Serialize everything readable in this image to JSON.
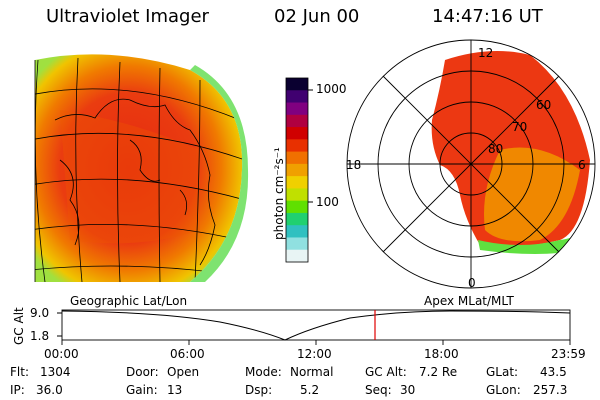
{
  "header": {
    "instrument": "Ultraviolet Imager",
    "date": "02 Jun 00",
    "time": "14:47:16 UT"
  },
  "colorbar": {
    "unit_label": "photon cm⁻²s⁻¹",
    "ticks": [
      "1000",
      "100"
    ],
    "colors": [
      "#0a0030",
      "#400070",
      "#800080",
      "#b00040",
      "#d00000",
      "#e83000",
      "#f07000",
      "#f0a000",
      "#f0d000",
      "#c0e000",
      "#60e000",
      "#20d070",
      "#30c0c0",
      "#90e0e0",
      "#e8f4f4"
    ]
  },
  "polar": {
    "clock_labels": [
      "12",
      "18",
      "6",
      "0"
    ],
    "lat_labels": [
      "60",
      "70",
      "80"
    ]
  },
  "panel_labels": {
    "left": "Geographic Lat/Lon",
    "right": "Apex MLat/MLT"
  },
  "altitude_plot": {
    "axis_label": "GC Alt",
    "y_ticks": [
      "9.0",
      "1.8"
    ],
    "x_ticks": [
      "00:00",
      "06:00",
      "12:00",
      "18:00",
      "23:59"
    ],
    "current_time_marker": "14:47"
  },
  "info": {
    "flt_label": "Flt:",
    "flt_value": "1304",
    "ip_label": "IP:",
    "ip_value": "36.0",
    "door_label": "Door:",
    "door_value": "Open",
    "gain_label": "Gain:",
    "gain_value": "13",
    "mode_label": "Mode:",
    "mode_value": "Normal",
    "dsp_label": "Dsp:",
    "dsp_value": "5.2",
    "gcalt_label": "GC Alt:",
    "gcalt_value": "7.2 Re",
    "seq_label": "Seq:",
    "seq_value": "30",
    "glat_label": "GLat:",
    "glat_value": "43.5",
    "glon_label": "GLon:",
    "glon_value": "257.3"
  }
}
